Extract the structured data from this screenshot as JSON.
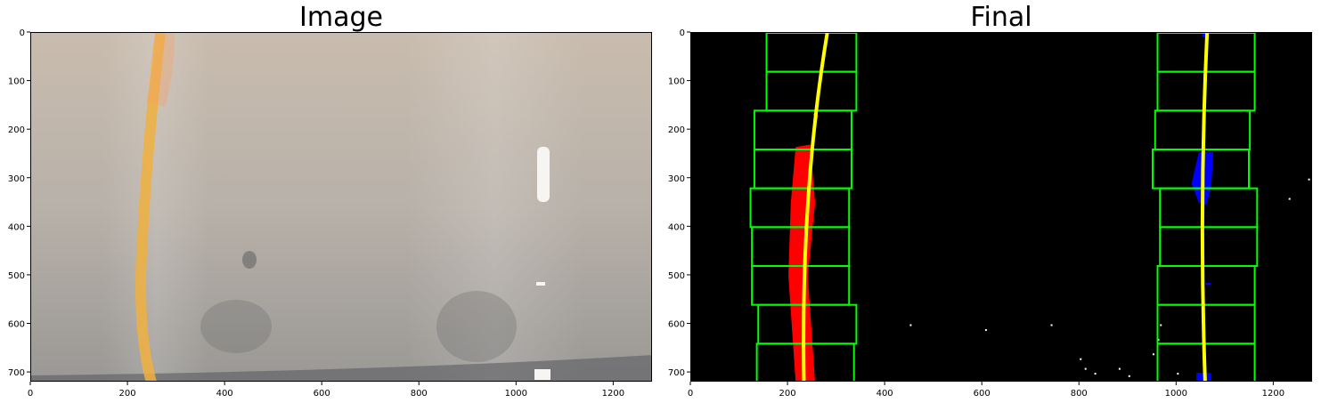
{
  "panels": [
    {
      "title": "Image",
      "x_ticks": [
        "0",
        "200",
        "400",
        "600",
        "800",
        "1000",
        "1200"
      ],
      "y_ticks": [
        "0",
        "100",
        "200",
        "300",
        "400",
        "500",
        "600",
        "700"
      ]
    },
    {
      "title": "Final",
      "x_ticks": [
        "0",
        "200",
        "400",
        "600",
        "800",
        "1000",
        "1200"
      ],
      "y_ticks": [
        "0",
        "100",
        "200",
        "300",
        "400",
        "500",
        "600",
        "700"
      ]
    }
  ],
  "image": {
    "xlim": [
      0,
      1280
    ],
    "ylim": [
      0,
      720
    ]
  },
  "colors": {
    "window_box": "#00ff00",
    "left_lane": "#ff0000",
    "right_lane": "#0000ff",
    "fit_line": "#ffff00"
  }
}
